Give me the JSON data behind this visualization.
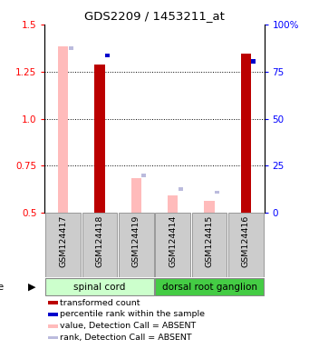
{
  "title": "GDS2209 / 1453211_at",
  "samples": [
    "GSM124417",
    "GSM124418",
    "GSM124419",
    "GSM124414",
    "GSM124415",
    "GSM124416"
  ],
  "red_values": [
    null,
    1.285,
    null,
    null,
    null,
    1.345
  ],
  "blue_values": [
    null,
    1.335,
    null,
    null,
    null,
    1.305
  ],
  "pink_values": [
    1.385,
    null,
    0.685,
    0.595,
    0.565,
    null
  ],
  "lavender_values": [
    1.375,
    null,
    0.7,
    0.625,
    0.61,
    null
  ],
  "ylim": [
    0.5,
    1.5
  ],
  "yticks_left": [
    0.5,
    0.75,
    1.0,
    1.25,
    1.5
  ],
  "yticks_right": [
    0,
    25,
    50,
    75,
    100
  ],
  "red_color": "#bb0000",
  "pink_color": "#ffbbbb",
  "blue_color": "#0000cc",
  "lavender_color": "#bbbbdd",
  "gray_color": "#cccccc",
  "green_light": "#ccffcc",
  "green_dark": "#44cc44",
  "tissue_groups": [
    {
      "label": "spinal cord",
      "start": 0,
      "end": 3
    },
    {
      "label": "dorsal root ganglion",
      "start": 3,
      "end": 6
    }
  ]
}
